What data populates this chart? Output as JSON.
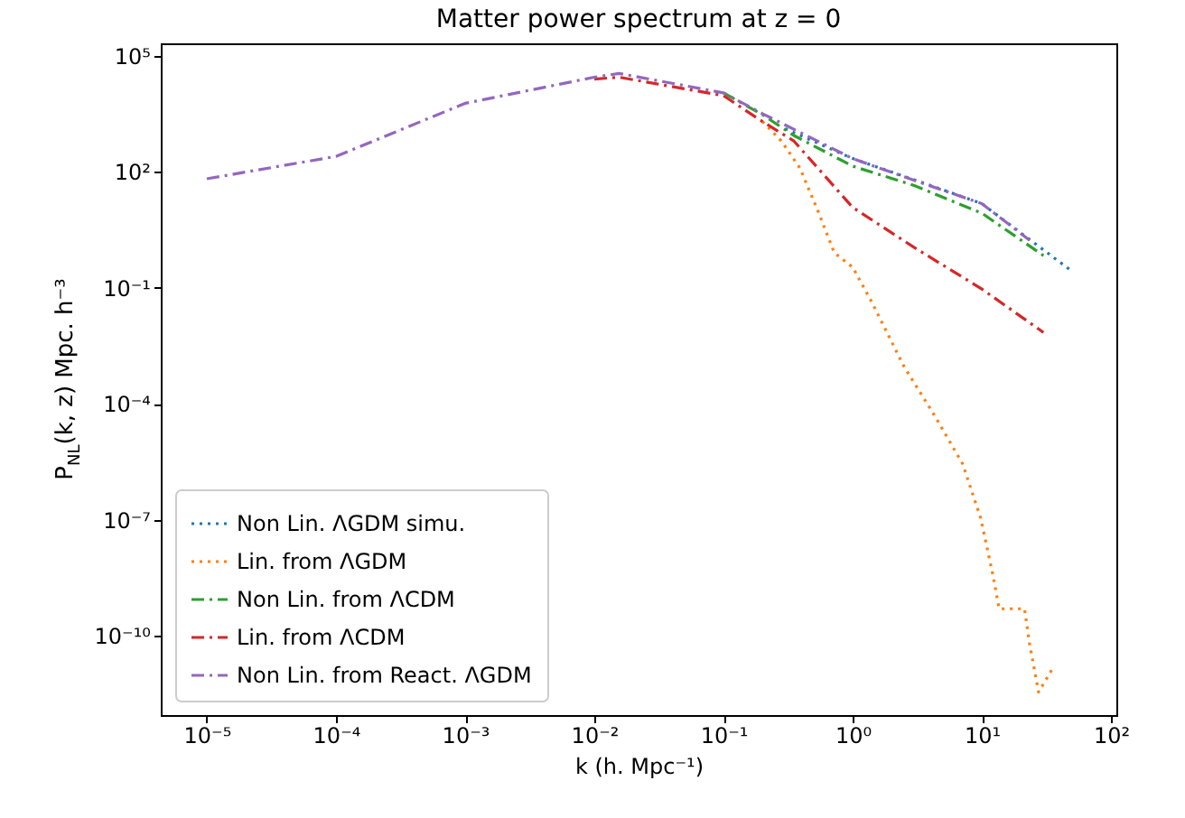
{
  "chart_data": {
    "type": "line",
    "title": "Matter power spectrum at z = 0",
    "xlabel": "k (h. Mpc⁻¹)",
    "ylabel": "P$_{NL}$(k, z) Mpc. h⁻³",
    "log": "xy",
    "grid": false,
    "legend": "bottom left",
    "marker": "none",
    "xlim": [
      4.4e-06,
      110
    ],
    "ylim": [
      8.9e-13,
      210000.0
    ],
    "xticks": [
      {
        "value": 1e-05,
        "label": "10⁻⁵"
      },
      {
        "value": 0.0001,
        "label": "10⁻⁴"
      },
      {
        "value": 0.001,
        "label": "10⁻³"
      },
      {
        "value": 0.01,
        "label": "10⁻²"
      },
      {
        "value": 0.1,
        "label": "10⁻¹"
      },
      {
        "value": 1,
        "label": "10⁰"
      },
      {
        "value": 10,
        "label": "10¹"
      },
      {
        "value": 100,
        "label": "10²"
      }
    ],
    "yticks": [
      {
        "value": 1e-10,
        "label": "10⁻¹⁰"
      },
      {
        "value": 1e-07,
        "label": "10⁻⁷"
      },
      {
        "value": 0.0001,
        "label": "10⁻⁴"
      },
      {
        "value": 0.1,
        "label": "10⁻¹"
      },
      {
        "value": 100,
        "label": "10²"
      },
      {
        "value": 100000,
        "label": "10⁵"
      }
    ],
    "series": [
      {
        "name": "Non Lin. ΛGDM simu.",
        "color": "#1f77b4",
        "line_style": "dotted",
        "x": [
          0.3,
          1,
          3,
          10,
          49
        ],
        "values": [
          1300,
          220,
          62,
          15,
          0.28
        ]
      },
      {
        "name": "Lin. from ΛGDM",
        "color": "#ff7f0e",
        "line_style": "dotted",
        "x": [
          0.2,
          0.28,
          0.39,
          0.54,
          0.72,
          1.0,
          1.4,
          2.5,
          4.3,
          7.1,
          9.8,
          12.3,
          13.6,
          21.4,
          23.4,
          27.5,
          34.7
        ],
        "values": [
          2000,
          631,
          126,
          9.5,
          0.81,
          0.34,
          0.044,
          0.00091,
          5e-05,
          2.8e-06,
          1.1e-07,
          3.2e-09,
          5e-10,
          5e-10,
          6.3e-11,
          3.5e-12,
          1.3e-11
        ]
      },
      {
        "name": "Non Lin. from ΛCDM",
        "color": "#2ca02c",
        "line_style": "dashdot",
        "x": [
          0.1,
          0.2,
          0.35,
          1,
          3,
          10,
          30
        ],
        "values": [
          11000,
          3000,
          870,
          140,
          44,
          8.5,
          0.68
        ]
      },
      {
        "name": "Lin. from ΛCDM",
        "color": "#d62728",
        "line_style": "dashdot",
        "x": [
          0.01,
          0.0155,
          0.1,
          0.2,
          0.35,
          1,
          3,
          10,
          30
        ],
        "values": [
          25000,
          28000,
          9300,
          2000,
          630,
          12,
          1.1,
          0.093,
          0.007
        ]
      },
      {
        "name": "Non Lin. from React. ΛGDM",
        "color": "#9467bd",
        "line_style": "dashdot",
        "x": [
          1e-05,
          0.0001,
          0.001,
          0.01,
          0.0155,
          0.1,
          0.2,
          0.35,
          1,
          3,
          10,
          23.4
        ],
        "values": [
          66,
          250,
          5900,
          28000,
          35000,
          11000,
          3200,
          1260,
          220,
          60,
          15,
          1.7
        ]
      }
    ]
  }
}
